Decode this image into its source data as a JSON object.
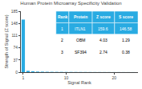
{
  "chart_data": {
    "type": "bar",
    "title": "Human Protein Microarray Specificity Validation",
    "xlabel": "Signal Rank",
    "ylabel": "Strength of Signal (Z score)",
    "x": [
      1,
      2,
      3,
      4,
      5,
      6,
      7,
      8,
      9,
      10,
      11,
      12,
      13,
      14,
      15,
      16,
      17,
      18,
      19,
      20,
      21,
      22,
      23,
      24
    ],
    "values": [
      159.6,
      4.03,
      2.74,
      1.8,
      1.5,
      1.2,
      1.0,
      0.9,
      0.8,
      0.7,
      0.65,
      0.6,
      0.55,
      0.5,
      0.45,
      0.4,
      0.38,
      0.35,
      0.32,
      0.3,
      0.28,
      0.25,
      0.22,
      0.2
    ],
    "color": "#29abe2",
    "xlim": [
      0.5,
      25
    ],
    "xticks": [
      1,
      10,
      20
    ],
    "ylim": [
      0,
      185
    ],
    "yticks": [
      0,
      37,
      74,
      111,
      148,
      185
    ],
    "grid": false,
    "table": [
      [
        "Rank",
        "Protein",
        "Z score",
        "S score"
      ],
      [
        "1",
        "ITLN1",
        "159.6",
        "146.58"
      ],
      [
        "2",
        "OBM",
        "4.03",
        "1.29"
      ],
      [
        "3",
        "SF394",
        "2.74",
        "0.38"
      ]
    ]
  }
}
